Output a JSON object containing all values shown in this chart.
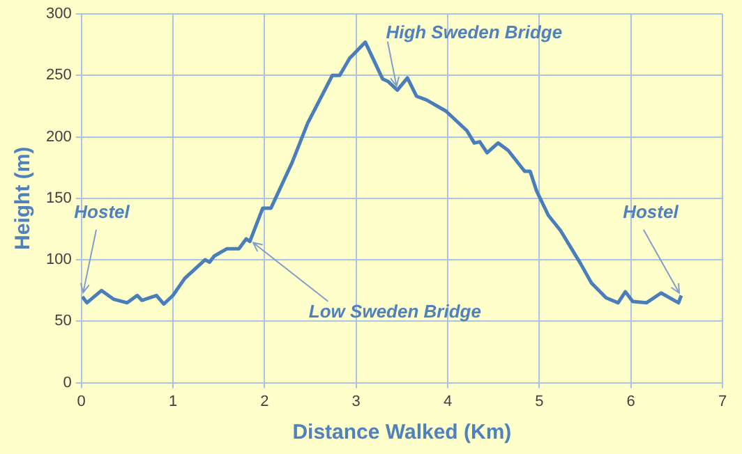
{
  "chart_data": {
    "type": "line",
    "xlabel": "Distance Walked (Km)",
    "ylabel": "Height (m)",
    "x": [
      0.01,
      0.06,
      0.22,
      0.35,
      0.5,
      0.61,
      0.66,
      0.82,
      0.9,
      1.0,
      1.13,
      1.35,
      1.4,
      1.45,
      1.59,
      1.72,
      1.8,
      1.84,
      1.98,
      2.07,
      2.3,
      2.47,
      2.74,
      2.82,
      2.93,
      3.1,
      3.29,
      3.35,
      3.45,
      3.56,
      3.66,
      3.77,
      3.98,
      4.21,
      4.29,
      4.35,
      4.43,
      4.55,
      4.66,
      4.84,
      4.9,
      4.97,
      5.1,
      5.23,
      5.45,
      5.57,
      5.73,
      5.86,
      5.94,
      6.02,
      6.17,
      6.33,
      6.52,
      6.55
    ],
    "series": [
      {
        "color": "#4a7ebb",
        "values": [
          70,
          65,
          75,
          68,
          65,
          71,
          67,
          71,
          64,
          71,
          85,
          100,
          98,
          103,
          109,
          109,
          117,
          115,
          142,
          142,
          179,
          211,
          250,
          250,
          264,
          277,
          247,
          245,
          238,
          248,
          233,
          230,
          221,
          205,
          195,
          196,
          187,
          195,
          189,
          172,
          172,
          156,
          136,
          124,
          97,
          81,
          69,
          65,
          74,
          66,
          65,
          73,
          65,
          71
        ]
      }
    ],
    "xlim": [
      0,
      7
    ],
    "xticks": [
      0,
      1,
      2,
      3,
      4,
      5,
      6,
      7
    ],
    "ylim": [
      0,
      300
    ],
    "yticks": [
      0,
      50,
      100,
      150,
      200,
      250,
      300
    ],
    "grid": true,
    "legend": false,
    "marker": "none",
    "line_style": "solid",
    "annotations": [
      {
        "text": "Hostel",
        "x": 0.01,
        "y": 70
      },
      {
        "text": "Low Sweden Bridge",
        "x": 1.84,
        "y": 116
      },
      {
        "text": "High Sweden Bridge",
        "x": 3.45,
        "y": 238
      },
      {
        "text": "Hostel",
        "x": 6.55,
        "y": 70
      }
    ]
  }
}
